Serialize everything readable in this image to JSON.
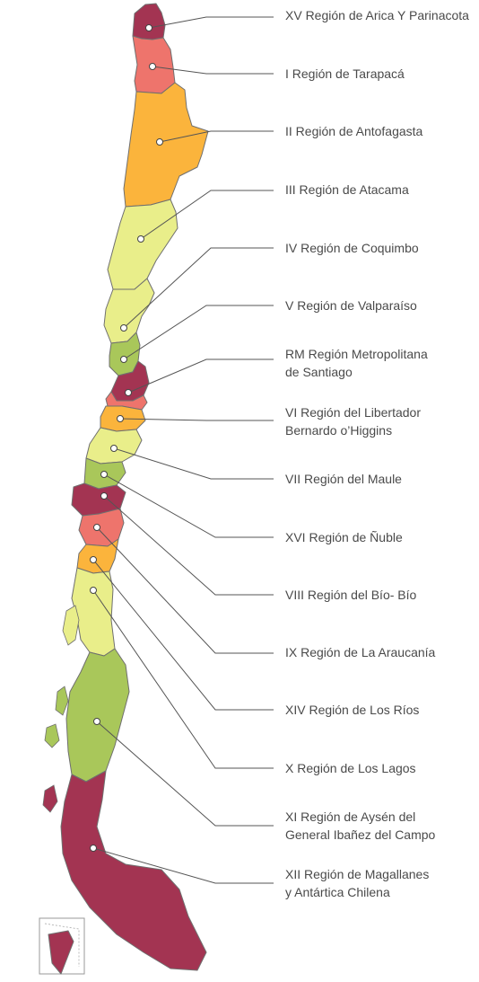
{
  "colors": {
    "crimson": "#a33452",
    "salmon": "#ee746c",
    "orange": "#fbb43c",
    "pale_yellow": "#e9ee8a",
    "olive_green": "#a9c75a",
    "leader_line": "#555555",
    "label_text": "#4a4a4a"
  },
  "regions": [
    {
      "id": "xv",
      "lines": [
        "XV Región de Arica Y Parinacota"
      ],
      "fill": "crimson"
    },
    {
      "id": "i",
      "lines": [
        "I Región de Tarapacá"
      ],
      "fill": "salmon"
    },
    {
      "id": "ii",
      "lines": [
        "II Región de Antofagasta"
      ],
      "fill": "orange"
    },
    {
      "id": "iii",
      "lines": [
        "III Región de Atacama"
      ],
      "fill": "pale_yellow"
    },
    {
      "id": "iv",
      "lines": [
        "IV Región de Coquimbo"
      ],
      "fill": "pale_yellow"
    },
    {
      "id": "v",
      "lines": [
        "V Región de Valparaíso"
      ],
      "fill": "olive_green"
    },
    {
      "id": "rm",
      "lines": [
        "RM Región Metropolitana",
        "de Santiago"
      ],
      "fill": "crimson"
    },
    {
      "id": "vi",
      "lines": [
        "VI Región del Libertador",
        "Bernardo o’Higgins"
      ],
      "fill": "salmon"
    },
    {
      "id": "vii",
      "lines": [
        "VII Región del Maule"
      ],
      "fill": "orange"
    },
    {
      "id": "xvi",
      "lines": [
        "XVI Región de Ñuble"
      ],
      "fill": "pale_yellow"
    },
    {
      "id": "viii",
      "lines": [
        "VIII Región del Bío- Bío"
      ],
      "fill": "olive_green"
    },
    {
      "id": "ix",
      "lines": [
        "IX Región de La Araucanía"
      ],
      "fill": "crimson"
    },
    {
      "id": "xiv",
      "lines": [
        "XIV Región de Los Ríos"
      ],
      "fill": "salmon"
    },
    {
      "id": "x",
      "lines": [
        "X Región de Los Lagos"
      ],
      "fill": "orange"
    },
    {
      "id": "xi",
      "lines": [
        "XI Región de Aysén del",
        "General Ibañez del Campo"
      ],
      "fill": "pale_yellow"
    },
    {
      "id": "xii",
      "lines": [
        "XII Región de Magallanes",
        "y Antártica Chilena"
      ],
      "fill": "olive_green"
    }
  ]
}
